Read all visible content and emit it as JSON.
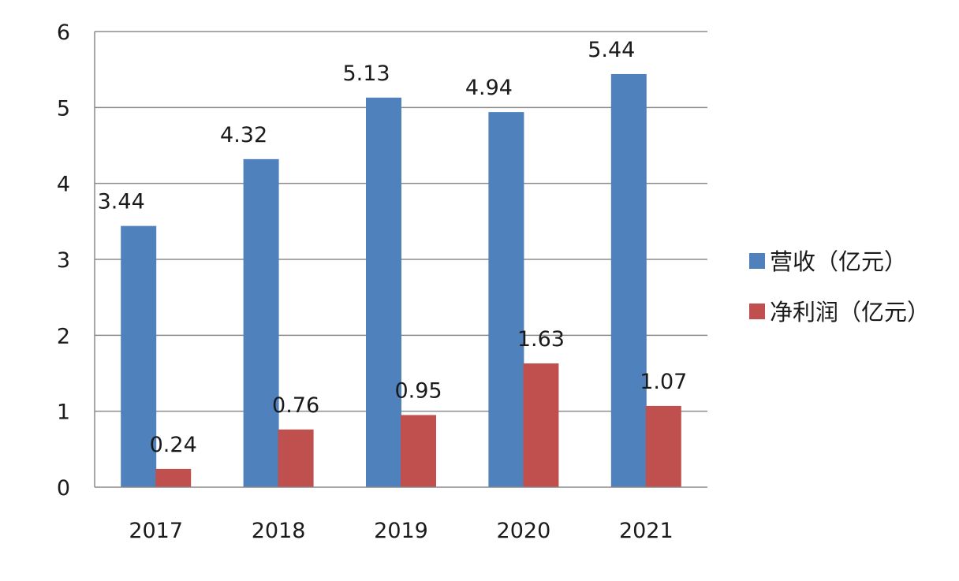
{
  "chart_data": {
    "type": "bar",
    "categories": [
      "2017",
      "2018",
      "2019",
      "2020",
      "2021"
    ],
    "series": [
      {
        "name": "营收（亿元）",
        "values": [
          3.44,
          4.32,
          5.13,
          4.94,
          5.44
        ],
        "color": "#4f81bd",
        "labels": [
          "3.44",
          "4.32",
          "5.13",
          "4.94",
          "5.44"
        ]
      },
      {
        "name": "净利润（亿元）",
        "values": [
          0.24,
          0.76,
          0.95,
          1.63,
          1.07
        ],
        "color": "#c0504d",
        "labels": [
          "0.24",
          "0.76",
          "0.95",
          "1.63",
          "1.07"
        ]
      }
    ],
    "ylim": [
      0,
      6
    ],
    "yticks": [
      "0",
      "1",
      "2",
      "3",
      "4",
      "5",
      "6"
    ],
    "grid": true,
    "legend_position": "right"
  }
}
